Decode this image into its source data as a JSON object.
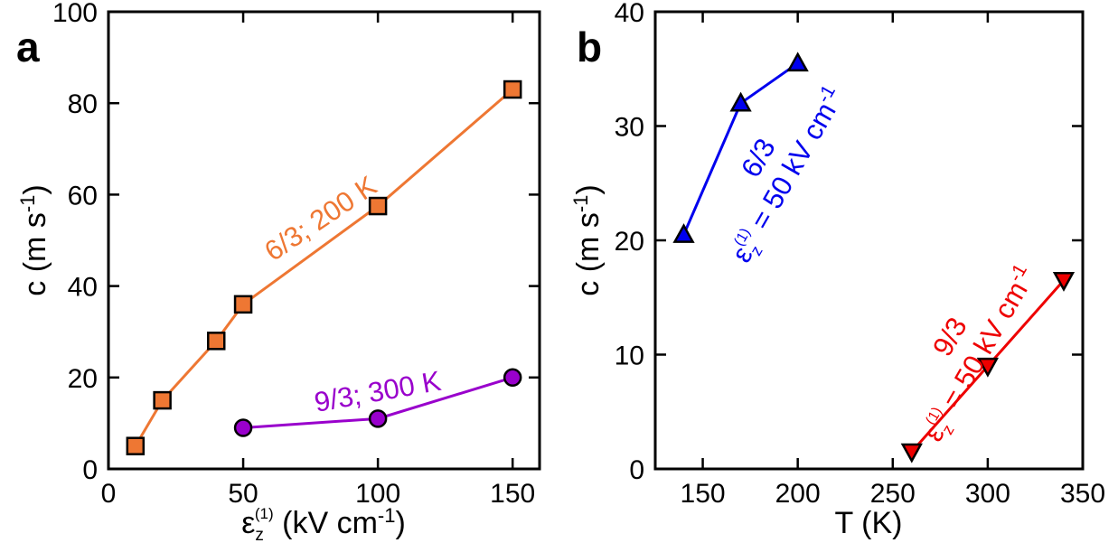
{
  "chart_data": [
    {
      "type": "line",
      "panel_label": "a",
      "xlabel": {
        "base": "ε",
        "sub": "z",
        "sup": "(1)",
        "rest": " (kV cm",
        "rest_sup": "-1",
        "close": ")"
      },
      "ylabel": {
        "text": "c (m s",
        "sup": "-1",
        "close": ")"
      },
      "xlim": [
        0,
        160
      ],
      "ylim": [
        0,
        100
      ],
      "xticks": [
        "0",
        "50",
        "100",
        "150"
      ],
      "yticks": [
        "0",
        "20",
        "40",
        "60",
        "80",
        "100"
      ],
      "series": [
        {
          "name": "6/3; 200 K",
          "color": "#ee7733",
          "marker": "square",
          "x": [
            10,
            20,
            40,
            50,
            100,
            150
          ],
          "y": [
            5,
            15,
            28,
            36,
            57.5,
            83
          ]
        },
        {
          "name": "9/3; 300 K",
          "color": "#9900cc",
          "marker": "circle",
          "x": [
            50,
            100,
            150
          ],
          "y": [
            9,
            11,
            20
          ]
        }
      ]
    },
    {
      "type": "line",
      "panel_label": "b",
      "xlabel": {
        "text": "T (K)"
      },
      "ylabel": {
        "text": "c (m s",
        "sup": "-1",
        "close": ")"
      },
      "xlim": [
        125,
        350
      ],
      "ylim": [
        0,
        40
      ],
      "xticks": [
        "150",
        "200",
        "250",
        "300",
        "350"
      ],
      "yticks": [
        "0",
        "10",
        "20",
        "30",
        "40"
      ],
      "series": [
        {
          "name": "6/3",
          "condition": {
            "base": "ε",
            "sub": "z",
            "sup": "(1)",
            "rest": " = 50 kV cm",
            "rest_sup": "-1"
          },
          "color": "#0000ee",
          "marker": "triangle-up",
          "x": [
            140,
            170,
            200
          ],
          "y": [
            20.5,
            32,
            35.5
          ]
        },
        {
          "name": "9/3",
          "condition": {
            "base": "ε",
            "sub": "z",
            "sup": "(1)",
            "rest": " = 50 kV cm",
            "rest_sup": "-1"
          },
          "color": "#ee0000",
          "marker": "triangle-down",
          "x": [
            260,
            300,
            340
          ],
          "y": [
            1.5,
            9,
            16.5
          ]
        }
      ]
    }
  ]
}
